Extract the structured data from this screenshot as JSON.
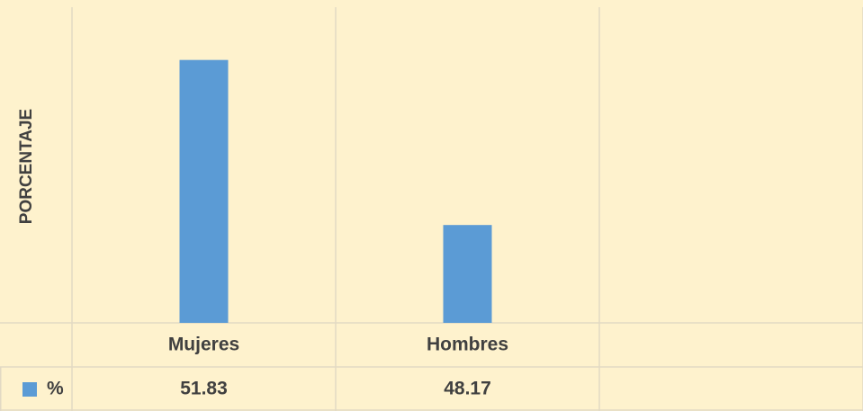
{
  "chart_data": {
    "type": "bar",
    "y_label": "PORCENTAJE",
    "categories": [
      "Mujeres",
      "Hombres",
      null
    ],
    "series": [
      {
        "name": "%",
        "color": "#5b9bd5",
        "values": [
          51.83,
          48.17,
          null
        ]
      }
    ],
    "ylim": [
      46,
      53
    ],
    "grid": true,
    "data_table": true
  }
}
